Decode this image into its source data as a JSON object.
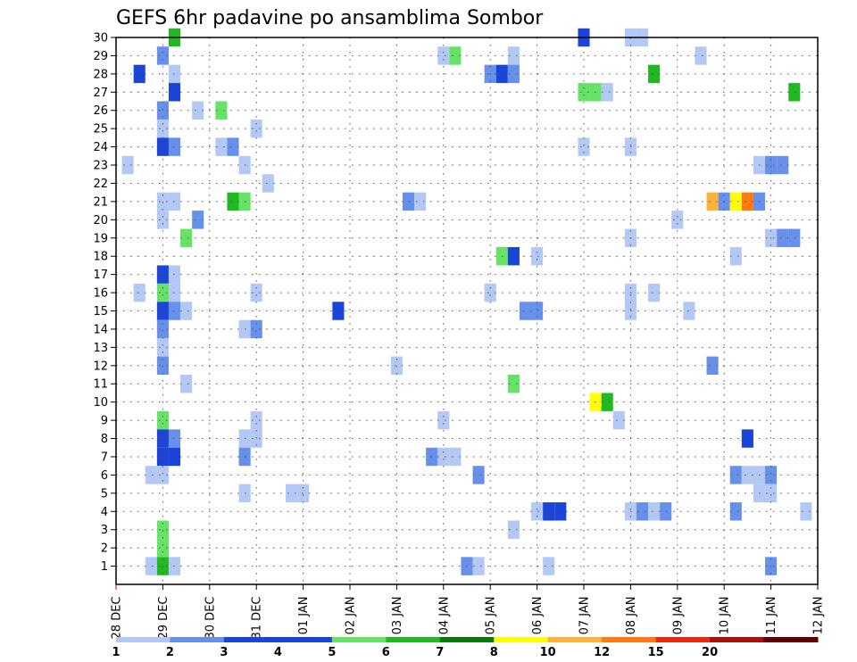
{
  "chart_data": {
    "type": "heatmap",
    "title": "GEFS 6hr padavine po ansamblima Sombor",
    "xlabel": "",
    "ylabel": "",
    "x_tick_labels": [
      "28 DEC",
      "29 DEC",
      "30 DEC",
      "31 DEC",
      "01 JAN",
      "02 JAN",
      "03 JAN",
      "04 JAN",
      "05 JAN",
      "06 JAN",
      "07 JAN",
      "08 JAN",
      "09 JAN",
      "10 JAN",
      "11 JAN",
      "12 JAN"
    ],
    "xlim_6h_steps": [
      0,
      60
    ],
    "y_tick_labels": [
      "1",
      "2",
      "3",
      "4",
      "5",
      "6",
      "7",
      "8",
      "9",
      "10",
      "11",
      "12",
      "13",
      "14",
      "15",
      "16",
      "17",
      "18",
      "19",
      "20",
      "21",
      "22",
      "23",
      "24",
      "25",
      "26",
      "27",
      "28",
      "29",
      "30"
    ],
    "ylim_members": [
      0,
      30
    ],
    "grid": true,
    "colorbar": {
      "labels": [
        "1",
        "2",
        "3",
        "4",
        "5",
        "6",
        "7",
        "8",
        "10",
        "12",
        "15",
        "20"
      ],
      "colors": [
        "#b4c8f5",
        "#6690ea",
        "#1a45d8",
        "#1a45d8",
        "#66e266",
        "#22b822",
        "#0a780a",
        "#ffff00",
        "#ffb23a",
        "#ff7a10",
        "#e82a10",
        "#a81010",
        "#600000"
      ]
    },
    "level_colors": {
      "1": "#b4c8f5",
      "2": "#6690ea",
      "3": "#1a45d8",
      "4": "#66e266",
      "5": "#22b822",
      "6": "#0a780a",
      "7": "#ffff00",
      "8": "#ffb23a",
      "10": "#ff7a10",
      "12": "#e82a10",
      "15": "#a81010",
      "20": "#600000"
    },
    "cells": [
      {
        "m": 30,
        "t": 5,
        "v": 5
      },
      {
        "m": 30,
        "t": 40,
        "v": 3
      },
      {
        "m": 30,
        "t": 44,
        "v": 1
      },
      {
        "m": 30,
        "t": 45,
        "v": 1
      },
      {
        "m": 29,
        "t": 4,
        "v": 2
      },
      {
        "m": 29,
        "t": 28,
        "v": 1
      },
      {
        "m": 29,
        "t": 29,
        "v": 4
      },
      {
        "m": 29,
        "t": 34,
        "v": 1
      },
      {
        "m": 29,
        "t": 50,
        "v": 1
      },
      {
        "m": 28,
        "t": 2,
        "v": 3
      },
      {
        "m": 28,
        "t": 5,
        "v": 1
      },
      {
        "m": 28,
        "t": 32,
        "v": 2
      },
      {
        "m": 28,
        "t": 33,
        "v": 3
      },
      {
        "m": 28,
        "t": 34,
        "v": 2
      },
      {
        "m": 28,
        "t": 46,
        "v": 5
      },
      {
        "m": 27,
        "t": 5,
        "v": 3
      },
      {
        "m": 27,
        "t": 40,
        "v": 4
      },
      {
        "m": 27,
        "t": 41,
        "v": 4
      },
      {
        "m": 27,
        "t": 42,
        "v": 1
      },
      {
        "m": 27,
        "t": 58,
        "v": 5
      },
      {
        "m": 26,
        "t": 4,
        "v": 2
      },
      {
        "m": 26,
        "t": 7,
        "v": 1
      },
      {
        "m": 26,
        "t": 9,
        "v": 4
      },
      {
        "m": 25,
        "t": 4,
        "v": 1
      },
      {
        "m": 25,
        "t": 12,
        "v": 1
      },
      {
        "m": 24,
        "t": 4,
        "v": 3
      },
      {
        "m": 24,
        "t": 5,
        "v": 2
      },
      {
        "m": 24,
        "t": 9,
        "v": 1
      },
      {
        "m": 24,
        "t": 10,
        "v": 2
      },
      {
        "m": 24,
        "t": 40,
        "v": 1
      },
      {
        "m": 24,
        "t": 44,
        "v": 1
      },
      {
        "m": 23,
        "t": 1,
        "v": 1
      },
      {
        "m": 23,
        "t": 11,
        "v": 1
      },
      {
        "m": 23,
        "t": 55,
        "v": 1
      },
      {
        "m": 23,
        "t": 56,
        "v": 2
      },
      {
        "m": 23,
        "t": 57,
        "v": 2
      },
      {
        "m": 22,
        "t": 13,
        "v": 1
      },
      {
        "m": 21,
        "t": 4,
        "v": 1
      },
      {
        "m": 21,
        "t": 5,
        "v": 1
      },
      {
        "m": 21,
        "t": 10,
        "v": 5
      },
      {
        "m": 21,
        "t": 11,
        "v": 4
      },
      {
        "m": 21,
        "t": 25,
        "v": 2
      },
      {
        "m": 21,
        "t": 26,
        "v": 1
      },
      {
        "m": 21,
        "t": 51,
        "v": 8
      },
      {
        "m": 21,
        "t": 52,
        "v": 2
      },
      {
        "m": 21,
        "t": 53,
        "v": 7
      },
      {
        "m": 21,
        "t": 54,
        "v": 10
      },
      {
        "m": 21,
        "t": 55,
        "v": 2
      },
      {
        "m": 20,
        "t": 4,
        "v": 1
      },
      {
        "m": 20,
        "t": 7,
        "v": 2
      },
      {
        "m": 20,
        "t": 48,
        "v": 1
      },
      {
        "m": 19,
        "t": 6,
        "v": 4
      },
      {
        "m": 19,
        "t": 44,
        "v": 1
      },
      {
        "m": 19,
        "t": 56,
        "v": 1
      },
      {
        "m": 19,
        "t": 57,
        "v": 2
      },
      {
        "m": 19,
        "t": 58,
        "v": 2
      },
      {
        "m": 18,
        "t": 33,
        "v": 4
      },
      {
        "m": 18,
        "t": 34,
        "v": 3
      },
      {
        "m": 18,
        "t": 36,
        "v": 1
      },
      {
        "m": 18,
        "t": 53,
        "v": 1
      },
      {
        "m": 17,
        "t": 4,
        "v": 3
      },
      {
        "m": 17,
        "t": 5,
        "v": 1
      },
      {
        "m": 16,
        "t": 2,
        "v": 1
      },
      {
        "m": 16,
        "t": 4,
        "v": 4
      },
      {
        "m": 16,
        "t": 5,
        "v": 1
      },
      {
        "m": 16,
        "t": 12,
        "v": 1
      },
      {
        "m": 16,
        "t": 32,
        "v": 1
      },
      {
        "m": 16,
        "t": 44,
        "v": 1
      },
      {
        "m": 16,
        "t": 46,
        "v": 1
      },
      {
        "m": 15,
        "t": 4,
        "v": 3
      },
      {
        "m": 15,
        "t": 5,
        "v": 2
      },
      {
        "m": 15,
        "t": 6,
        "v": 1
      },
      {
        "m": 15,
        "t": 19,
        "v": 3
      },
      {
        "m": 15,
        "t": 35,
        "v": 2
      },
      {
        "m": 15,
        "t": 36,
        "v": 2
      },
      {
        "m": 15,
        "t": 44,
        "v": 1
      },
      {
        "m": 15,
        "t": 49,
        "v": 1
      },
      {
        "m": 14,
        "t": 4,
        "v": 2
      },
      {
        "m": 14,
        "t": 11,
        "v": 1
      },
      {
        "m": 14,
        "t": 12,
        "v": 2
      },
      {
        "m": 13,
        "t": 4,
        "v": 1
      },
      {
        "m": 12,
        "t": 4,
        "v": 2
      },
      {
        "m": 12,
        "t": 24,
        "v": 1
      },
      {
        "m": 12,
        "t": 51,
        "v": 2
      },
      {
        "m": 11,
        "t": 6,
        "v": 1
      },
      {
        "m": 11,
        "t": 34,
        "v": 4
      },
      {
        "m": 10,
        "t": 41,
        "v": 7
      },
      {
        "m": 10,
        "t": 42,
        "v": 5
      },
      {
        "m": 9,
        "t": 4,
        "v": 4
      },
      {
        "m": 9,
        "t": 12,
        "v": 1
      },
      {
        "m": 9,
        "t": 28,
        "v": 1
      },
      {
        "m": 9,
        "t": 43,
        "v": 1
      },
      {
        "m": 8,
        "t": 4,
        "v": 3
      },
      {
        "m": 8,
        "t": 5,
        "v": 2
      },
      {
        "m": 8,
        "t": 11,
        "v": 1
      },
      {
        "m": 8,
        "t": 12,
        "v": 1
      },
      {
        "m": 8,
        "t": 54,
        "v": 3
      },
      {
        "m": 7,
        "t": 4,
        "v": 3
      },
      {
        "m": 7,
        "t": 5,
        "v": 3
      },
      {
        "m": 7,
        "t": 11,
        "v": 2
      },
      {
        "m": 7,
        "t": 27,
        "v": 2
      },
      {
        "m": 7,
        "t": 28,
        "v": 1
      },
      {
        "m": 7,
        "t": 29,
        "v": 1
      },
      {
        "m": 6,
        "t": 3,
        "v": 1
      },
      {
        "m": 6,
        "t": 4,
        "v": 1
      },
      {
        "m": 6,
        "t": 31,
        "v": 2
      },
      {
        "m": 6,
        "t": 53,
        "v": 2
      },
      {
        "m": 6,
        "t": 54,
        "v": 1
      },
      {
        "m": 6,
        "t": 55,
        "v": 1
      },
      {
        "m": 6,
        "t": 56,
        "v": 2
      },
      {
        "m": 5,
        "t": 11,
        "v": 1
      },
      {
        "m": 5,
        "t": 15,
        "v": 1
      },
      {
        "m": 5,
        "t": 16,
        "v": 1
      },
      {
        "m": 5,
        "t": 55,
        "v": 1
      },
      {
        "m": 5,
        "t": 56,
        "v": 1
      },
      {
        "m": 4,
        "t": 36,
        "v": 1
      },
      {
        "m": 4,
        "t": 37,
        "v": 3
      },
      {
        "m": 4,
        "t": 38,
        "v": 3
      },
      {
        "m": 4,
        "t": 44,
        "v": 1
      },
      {
        "m": 4,
        "t": 45,
        "v": 2
      },
      {
        "m": 4,
        "t": 46,
        "v": 1
      },
      {
        "m": 4,
        "t": 47,
        "v": 2
      },
      {
        "m": 4,
        "t": 53,
        "v": 2
      },
      {
        "m": 4,
        "t": 59,
        "v": 1
      },
      {
        "m": 3,
        "t": 4,
        "v": 4
      },
      {
        "m": 3,
        "t": 34,
        "v": 1
      },
      {
        "m": 2,
        "t": 4,
        "v": 4
      },
      {
        "m": 1,
        "t": 3,
        "v": 1
      },
      {
        "m": 1,
        "t": 4,
        "v": 5
      },
      {
        "m": 1,
        "t": 5,
        "v": 1
      },
      {
        "m": 1,
        "t": 30,
        "v": 2
      },
      {
        "m": 1,
        "t": 31,
        "v": 1
      },
      {
        "m": 1,
        "t": 37,
        "v": 1
      },
      {
        "m": 1,
        "t": 56,
        "v": 2
      }
    ]
  }
}
